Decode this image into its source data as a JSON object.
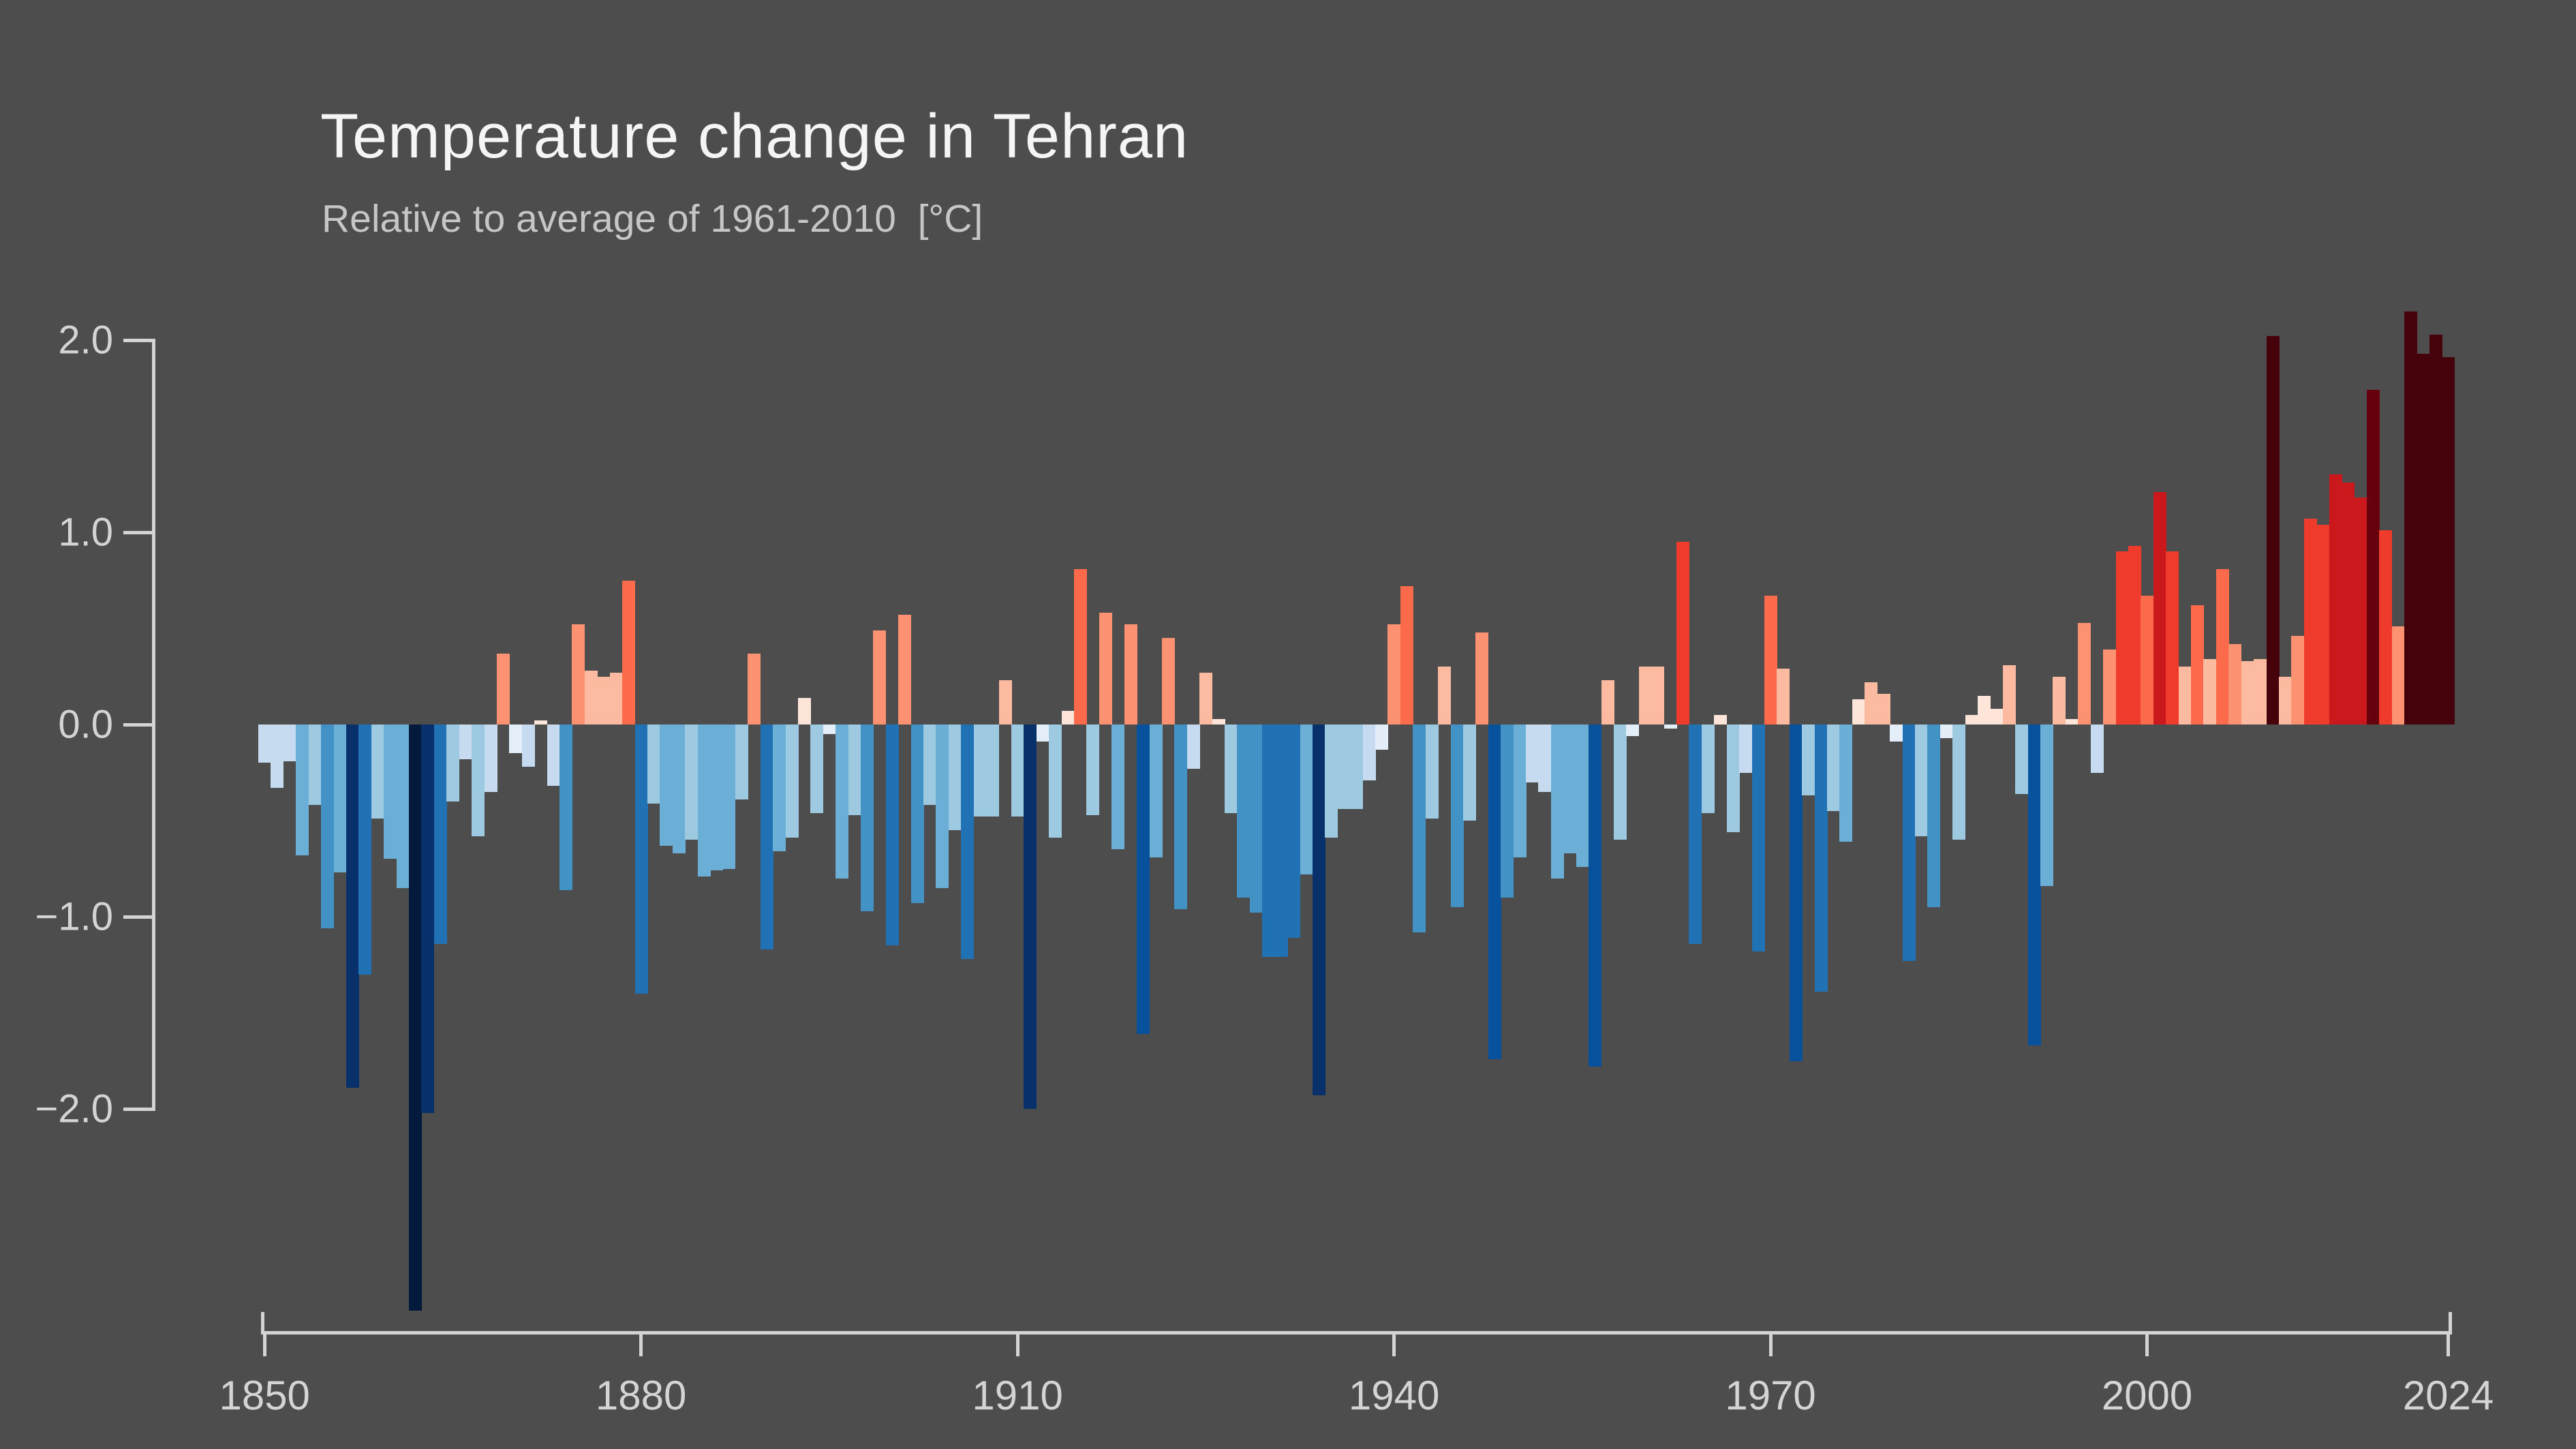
{
  "chart_data": {
    "type": "bar",
    "title": "Temperature change in Tehran",
    "subtitle": "Relative to average of 1961-2010  [°C]",
    "unit": "°C",
    "baseline_value": 0.0,
    "x_start_year": 1850,
    "x_end_year": 2024,
    "ylim": [
      -2.0,
      2.0
    ],
    "grid": false,
    "legend": "none",
    "y_tick_values": [
      2.0,
      1.0,
      0.0,
      -1.0,
      -2.0
    ],
    "y_tick_labels": [
      "2.0",
      "1.0",
      "0.0",
      "−1.0",
      "−2.0"
    ],
    "x_tick_years": [
      1850,
      1880,
      1910,
      1940,
      1970,
      2000,
      2024
    ],
    "x_tick_labels": [
      "1850",
      "1880",
      "1910",
      "1940",
      "1970",
      "2000",
      "2024"
    ],
    "background_color": "#4d4d4d",
    "axis_color": "#d4d4d4",
    "title_color": "#f5f5f5",
    "subtitle_color": "#c6c6c6",
    "palette_positive": [
      [
        0.15,
        "#fee5d9"
      ],
      [
        0.35,
        "#fcbba1"
      ],
      [
        0.6,
        "#fc9272"
      ],
      [
        0.85,
        "#fb6a4a"
      ],
      [
        1.1,
        "#ef3b2c"
      ],
      [
        1.5,
        "#cb181d"
      ],
      [
        1.85,
        "#67000d"
      ],
      [
        9.99,
        "#45020b"
      ]
    ],
    "palette_negative": [
      [
        0.15,
        "#e4eef8"
      ],
      [
        0.35,
        "#c6dbef"
      ],
      [
        0.6,
        "#9ecae1"
      ],
      [
        0.85,
        "#6baed6"
      ],
      [
        1.1,
        "#4292c6"
      ],
      [
        1.5,
        "#2171b5"
      ],
      [
        1.85,
        "#08519c"
      ],
      [
        2.5,
        "#08306b"
      ],
      [
        9.99,
        "#031a3d"
      ]
    ],
    "categories": [
      1850,
      1851,
      1852,
      1853,
      1854,
      1855,
      1856,
      1857,
      1858,
      1859,
      1860,
      1861,
      1862,
      1863,
      1864,
      1865,
      1866,
      1867,
      1868,
      1869,
      1870,
      1871,
      1872,
      1873,
      1874,
      1875,
      1876,
      1877,
      1878,
      1879,
      1880,
      1881,
      1882,
      1883,
      1884,
      1885,
      1886,
      1887,
      1888,
      1889,
      1890,
      1891,
      1892,
      1893,
      1894,
      1895,
      1896,
      1897,
      1898,
      1899,
      1900,
      1901,
      1902,
      1903,
      1904,
      1905,
      1906,
      1907,
      1908,
      1909,
      1910,
      1911,
      1912,
      1913,
      1914,
      1915,
      1916,
      1917,
      1918,
      1919,
      1920,
      1921,
      1922,
      1923,
      1924,
      1925,
      1926,
      1927,
      1928,
      1929,
      1930,
      1931,
      1932,
      1933,
      1934,
      1935,
      1936,
      1937,
      1938,
      1939,
      1940,
      1941,
      1942,
      1943,
      1944,
      1945,
      1946,
      1947,
      1948,
      1949,
      1950,
      1951,
      1952,
      1953,
      1954,
      1955,
      1956,
      1957,
      1958,
      1959,
      1960,
      1961,
      1962,
      1963,
      1964,
      1965,
      1966,
      1967,
      1968,
      1969,
      1970,
      1971,
      1972,
      1973,
      1974,
      1975,
      1976,
      1977,
      1978,
      1979,
      1980,
      1981,
      1982,
      1983,
      1984,
      1985,
      1986,
      1987,
      1988,
      1989,
      1990,
      1991,
      1992,
      1993,
      1994,
      1995,
      1996,
      1997,
      1998,
      1999,
      2000,
      2001,
      2002,
      2003,
      2004,
      2005,
      2006,
      2007,
      2008,
      2009,
      2010,
      2011,
      2012,
      2013,
      2014,
      2015,
      2016,
      2017,
      2018,
      2019,
      2020,
      2021,
      2022,
      2023,
      2024
    ],
    "values": [
      -0.2,
      -0.33,
      -0.19,
      -0.68,
      -0.42,
      -1.06,
      -0.77,
      -1.89,
      -1.3,
      -0.49,
      -0.7,
      -0.85,
      -3.05,
      -2.02,
      -1.14,
      -0.4,
      -0.18,
      -0.58,
      -0.35,
      0.37,
      -0.15,
      -0.22,
      0.02,
      -0.32,
      -0.86,
      0.52,
      0.28,
      0.25,
      0.27,
      0.75,
      -1.4,
      -0.41,
      -0.63,
      -0.67,
      -0.6,
      -0.79,
      -0.76,
      -0.75,
      -0.39,
      0.37,
      -1.17,
      -0.66,
      -0.59,
      0.14,
      -0.46,
      -0.05,
      -0.8,
      -0.47,
      -0.97,
      0.49,
      -1.15,
      0.57,
      -0.93,
      -0.42,
      -0.85,
      -0.55,
      -1.22,
      -0.48,
      -0.48,
      0.23,
      -0.48,
      -2.0,
      -0.09,
      -0.59,
      0.07,
      0.81,
      -0.47,
      0.58,
      -0.65,
      0.52,
      -1.61,
      -0.69,
      0.45,
      -0.96,
      -0.23,
      0.27,
      0.03,
      -0.46,
      -0.9,
      -0.98,
      -1.21,
      -1.21,
      -1.11,
      -0.78,
      -1.93,
      -0.59,
      -0.44,
      -0.44,
      -0.29,
      -0.13,
      0.52,
      0.72,
      -1.08,
      -0.49,
      0.3,
      -0.95,
      -0.5,
      0.48,
      -1.74,
      -0.9,
      -0.69,
      -0.3,
      -0.35,
      -0.8,
      -0.67,
      -0.74,
      -1.78,
      0.23,
      -0.6,
      -0.06,
      0.3,
      0.3,
      -0.02,
      0.95,
      -1.14,
      -0.46,
      0.05,
      -0.56,
      -0.25,
      -1.18,
      0.67,
      0.29,
      -1.75,
      -0.37,
      -1.39,
      -0.45,
      -0.61,
      0.13,
      0.22,
      0.16,
      -0.09,
      -1.23,
      -0.58,
      -0.95,
      -0.07,
      -0.6,
      0.05,
      0.15,
      0.08,
      0.31,
      -0.36,
      -1.67,
      -0.84,
      0.25,
      0.03,
      0.53,
      -0.25,
      0.39,
      0.9,
      0.93,
      0.67,
      1.21,
      0.9,
      0.3,
      0.62,
      0.34,
      0.81,
      0.42,
      0.33,
      0.34,
      2.02,
      0.25,
      0.46,
      1.07,
      1.04,
      1.3,
      1.26,
      1.18,
      1.74,
      1.01,
      0.51,
      2.15,
      1.93,
      2.03,
      1.91
    ]
  }
}
